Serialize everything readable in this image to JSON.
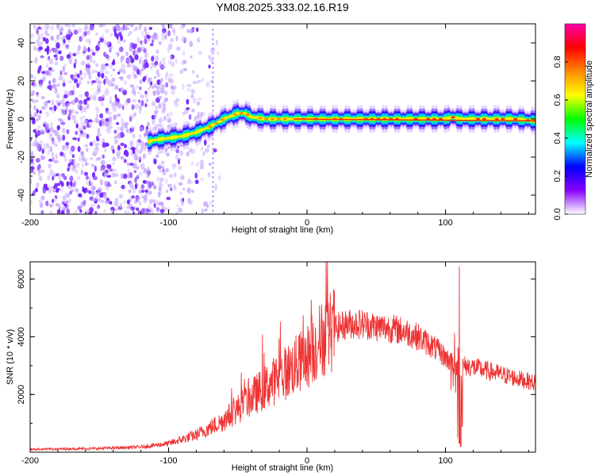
{
  "title": "YM08.2025.333.02.16.R19",
  "chart_data": [
    {
      "type": "heatmap",
      "name": "spectrogram",
      "xlabel": "Height of straight line (km)",
      "ylabel": "Frequency (Hz)",
      "xlim": [
        -200,
        165
      ],
      "ylim": [
        -50,
        50
      ],
      "xticks": [
        -200,
        -100,
        0,
        100
      ],
      "yticks": [
        -40,
        -20,
        0,
        20,
        40
      ],
      "colorbar": {
        "label": "Normalized spectral amplitude",
        "range": [
          0,
          1
        ],
        "ticks": [
          "0.0",
          "0.2",
          "0.4",
          "0.6",
          "0.8"
        ],
        "colors": [
          "#ffffff",
          "#8800ff",
          "#0000ff",
          "#00ffff",
          "#00ff00",
          "#ffff00",
          "#ff8800",
          "#ff0000",
          "#ff00aa"
        ]
      },
      "ridge": {
        "x": [
          -115,
          -110,
          -100,
          -90,
          -80,
          -70,
          -60,
          -50,
          -45,
          -40,
          -30,
          -20,
          -10,
          0,
          20,
          40,
          60,
          80,
          95,
          100,
          105,
          110,
          130,
          150,
          165
        ],
        "freq": [
          -12,
          -11,
          -10,
          -9,
          -7,
          -4,
          0,
          3,
          3,
          1,
          0,
          0,
          0,
          0,
          0,
          0,
          0,
          0,
          0,
          0,
          1,
          0,
          0,
          0,
          -1
        ]
      }
    },
    {
      "type": "line",
      "name": "snr",
      "xlabel": "Height of straight line (km)",
      "ylabel": "SNR (10 * v/v)",
      "xlim": [
        -200,
        165
      ],
      "ylim": [
        0,
        6600
      ],
      "xticks": [
        -200,
        -100,
        0,
        100
      ],
      "yticks": [
        2000,
        4000,
        6000
      ],
      "color": "#ee3333",
      "envelope": {
        "x": [
          -200,
          -150,
          -120,
          -100,
          -80,
          -60,
          -40,
          -20,
          0,
          10,
          20,
          30,
          40,
          50,
          60,
          70,
          80,
          90,
          100,
          104,
          108,
          110,
          112,
          120,
          140,
          165
        ],
        "y": [
          100,
          130,
          180,
          300,
          600,
          1100,
          1900,
          2600,
          3300,
          3900,
          4300,
          4450,
          4450,
          4350,
          4300,
          4200,
          4000,
          3700,
          3300,
          3100,
          3000,
          3000,
          3000,
          2950,
          2700,
          2400
        ]
      },
      "spikes": {
        "x": [
          109,
          110,
          111,
          112
        ],
        "y_max": [
          4000,
          6500,
          5500,
          2500
        ],
        "y_min": [
          500,
          300,
          200,
          900
        ]
      }
    }
  ]
}
